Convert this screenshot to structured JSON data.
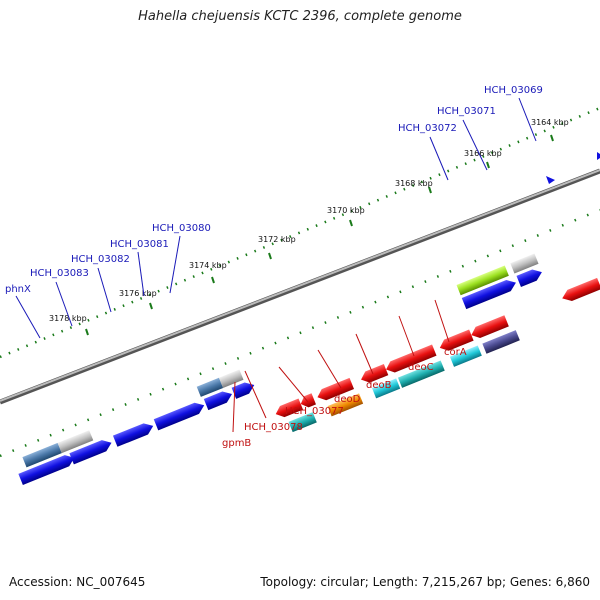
{
  "title": "Hahella chejuensis KCTC 2396, complete genome",
  "footer": {
    "accession": "Accession: NC_007645",
    "topology": "Topology: circular; Length: 7,215,267 bp; Genes: 6,860"
  },
  "coordinate_labels": [
    "3164 kbp",
    "3166 kbp",
    "3168 kbp",
    "3170 kbp",
    "3172 kbp",
    "3174 kbp",
    "3176 kbp",
    "3178 kbp"
  ],
  "forward_gene_labels": [
    "HCH_03069",
    "HCH_03071",
    "HCH_03072",
    "HCH_03080",
    "HCH_03081",
    "HCH_03082",
    "HCH_03083",
    "phnX"
  ],
  "reverse_gene_labels": [
    "corA",
    "deoC",
    "deoB",
    "deoD",
    "HCH_03077",
    "HCH_03078",
    "gpmB"
  ],
  "colors": {
    "forward_gene": "#1010e0",
    "reverse_gene": "#e01010",
    "backbone": "#888888",
    "tick": "#1a7a1a",
    "forward_label": "#1a1ab8",
    "reverse_label": "#c01010",
    "cyan_gene": "#20c8d8",
    "teal_gene": "#20b0b0",
    "orange_gene": "#f08a00",
    "lime_gene": "#9be020",
    "grey_gene": "#b8b8b8",
    "steel_gene": "#4a78a8",
    "navy_gene": "#4a4a90"
  }
}
